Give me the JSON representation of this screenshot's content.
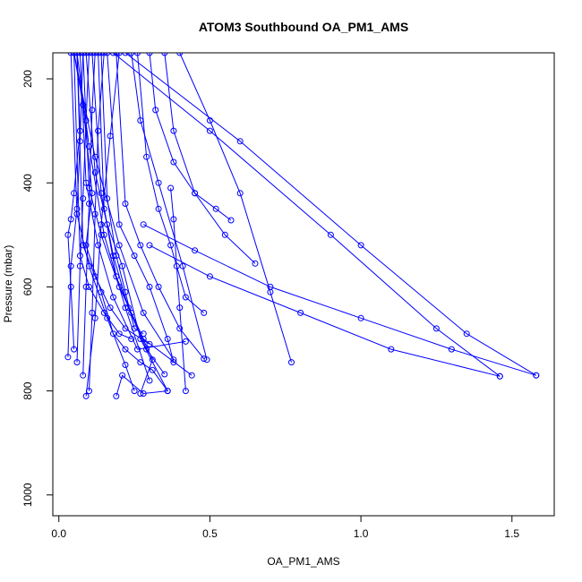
{
  "chart_data": {
    "type": "line",
    "title": "ATOM3 Southbound OA_PM1_AMS",
    "xlabel": "OA_PM1_AMS",
    "ylabel": "Pressure (mbar)",
    "xlim": [
      -0.02,
      1.64
    ],
    "ylim": [
      1040,
      150
    ],
    "y_reversed": true,
    "x_ticks": [
      0.0,
      0.5,
      1.0,
      1.5
    ],
    "x_tick_labels": [
      "0.0",
      "0.5",
      "1.0",
      "1.5"
    ],
    "y_ticks": [
      200,
      400,
      600,
      800,
      1000
    ],
    "y_tick_labels": [
      "200",
      "400",
      "600",
      "800",
      "1000"
    ],
    "grid": false,
    "legend": "none",
    "series_color": "#0000ff",
    "marker": "open-circle",
    "series": [
      {
        "x": [
          0.05,
          0.08,
          0.11,
          0.09,
          0.14,
          0.18,
          0.22,
          0.27,
          0.31,
          0.36,
          0.28,
          0.21,
          0.19
        ],
        "y": [
          150,
          250,
          420,
          520,
          610,
          690,
          720,
          745,
          760,
          800,
          805,
          770,
          810
        ]
      },
      {
        "x": [
          0.06,
          0.07,
          0.05,
          0.04,
          0.03,
          0.04,
          0.05
        ],
        "y": [
          150,
          300,
          420,
          470,
          500,
          600,
          720
        ]
      },
      {
        "x": [
          0.08,
          0.07,
          0.06,
          0.04,
          0.03
        ],
        "y": [
          150,
          320,
          450,
          560,
          735
        ]
      },
      {
        "x": [
          0.1,
          0.09,
          0.08,
          0.07,
          0.06
        ],
        "y": [
          150,
          280,
          430,
          560,
          745
        ]
      },
      {
        "x": [
          0.12,
          0.11,
          0.1,
          0.09,
          0.08
        ],
        "y": [
          150,
          260,
          440,
          600,
          770
        ]
      },
      {
        "x": [
          0.15,
          0.13,
          0.12,
          0.11,
          0.1
        ],
        "y": [
          150,
          300,
          460,
          650,
          800
        ]
      },
      {
        "x": [
          0.2,
          0.17,
          0.14,
          0.12,
          0.09
        ],
        "y": [
          150,
          310,
          480,
          660,
          810
        ]
      },
      {
        "x": [
          0.05,
          0.12,
          0.2,
          0.28,
          0.38
        ],
        "y": [
          150,
          350,
          520,
          650,
          740
        ]
      },
      {
        "x": [
          0.06,
          0.1,
          0.15,
          0.22,
          0.3
        ],
        "y": [
          150,
          330,
          500,
          640,
          780
        ]
      },
      {
        "x": [
          0.24,
          0.27,
          0.33,
          0.41,
          0.49
        ],
        "y": [
          150,
          280,
          400,
          560,
          740
        ]
      },
      {
        "x": [
          0.3,
          0.32,
          0.38,
          0.45,
          0.52,
          0.57
        ],
        "y": [
          150,
          260,
          360,
          420,
          450,
          472
        ]
      },
      {
        "x": [
          0.35,
          0.38,
          0.45,
          0.55,
          0.65
        ],
        "y": [
          150,
          300,
          420,
          500,
          555
        ]
      },
      {
        "x": [
          0.4,
          0.5,
          0.6,
          0.7,
          0.77
        ],
        "y": [
          150,
          280,
          420,
          610,
          745
        ]
      },
      {
        "x": [
          0.18,
          0.5,
          0.9,
          1.25,
          1.46
        ],
        "y": [
          150,
          300,
          500,
          680,
          772
        ]
      },
      {
        "x": [
          0.22,
          0.6,
          1.0,
          1.35,
          1.58
        ],
        "y": [
          150,
          320,
          520,
          690,
          770
        ]
      },
      {
        "x": [
          0.28,
          0.45,
          0.7,
          1.0,
          1.3,
          1.58
        ],
        "y": [
          480,
          530,
          600,
          660,
          720,
          770
        ]
      },
      {
        "x": [
          0.3,
          0.5,
          0.8,
          1.1,
          1.46
        ],
        "y": [
          520,
          580,
          650,
          720,
          772
        ]
      },
      {
        "x": [
          0.14,
          0.16,
          0.19,
          0.22,
          0.25,
          0.28
        ],
        "y": [
          150,
          430,
          540,
          610,
          680,
          690
        ]
      },
      {
        "x": [
          0.26,
          0.29,
          0.33,
          0.37,
          0.42,
          0.48
        ],
        "y": [
          150,
          350,
          450,
          520,
          620,
          650
        ]
      },
      {
        "x": [
          0.09,
          0.12,
          0.16,
          0.21,
          0.27,
          0.36
        ],
        "y": [
          150,
          380,
          480,
          560,
          700,
          800
        ]
      },
      {
        "x": [
          0.37,
          0.38,
          0.39,
          0.4,
          0.42
        ],
        "y": [
          410,
          470,
          560,
          640,
          800
        ]
      },
      {
        "x": [
          0.07,
          0.09,
          0.13,
          0.18,
          0.26,
          0.42
        ],
        "y": [
          150,
          400,
          520,
          620,
          720,
          705
        ]
      },
      {
        "x": [
          0.11,
          0.14,
          0.18,
          0.23,
          0.29,
          0.35
        ],
        "y": [
          150,
          420,
          540,
          640,
          720,
          768
        ]
      },
      {
        "x": [
          0.08,
          0.1,
          0.14,
          0.2,
          0.28,
          0.44
        ],
        "y": [
          150,
          410,
          500,
          600,
          700,
          770
        ]
      },
      {
        "x": [
          0.04,
          0.06,
          0.1,
          0.16,
          0.22,
          0.25
        ],
        "y": [
          150,
          460,
          560,
          660,
          750,
          800
        ]
      },
      {
        "x": [
          0.13,
          0.15,
          0.19,
          0.24,
          0.31,
          0.27
        ],
        "y": [
          150,
          450,
          580,
          650,
          740,
          805
        ]
      },
      {
        "x": [
          0.16,
          0.2,
          0.25,
          0.3,
          0.36,
          0.38
        ],
        "y": [
          150,
          480,
          540,
          600,
          700,
          745
        ]
      },
      {
        "x": [
          0.19,
          0.22,
          0.27,
          0.33,
          0.4,
          0.48
        ],
        "y": [
          150,
          440,
          520,
          600,
          680,
          738
        ]
      },
      {
        "x": [
          0.06,
          0.08,
          0.12,
          0.17,
          0.22,
          0.3
        ],
        "y": [
          150,
          520,
          580,
          640,
          680,
          710
        ]
      },
      {
        "x": [
          0.05,
          0.07,
          0.1,
          0.15,
          0.2,
          0.24
        ],
        "y": [
          150,
          540,
          600,
          650,
          690,
          700
        ]
      }
    ]
  }
}
